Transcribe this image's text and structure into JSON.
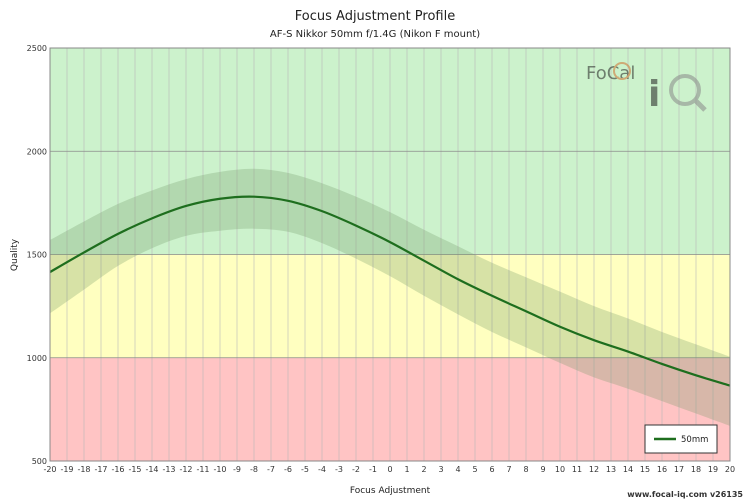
{
  "chart_data": {
    "type": "line",
    "title": "Focus Adjustment Profile",
    "subtitle": "AF-S Nikkor 50mm f/1.4G (Nikon F mount)",
    "xlabel": "Focus Adjustment",
    "ylabel": "Quality",
    "xlim": [
      -20,
      20
    ],
    "ylim": [
      500,
      2500
    ],
    "x_ticks": [
      -20,
      -19,
      -18,
      -17,
      -16,
      -15,
      -14,
      -13,
      -12,
      -11,
      -10,
      -9,
      -8,
      -7,
      -6,
      -5,
      -4,
      -3,
      -2,
      -1,
      0,
      1,
      2,
      3,
      4,
      5,
      6,
      7,
      8,
      9,
      10,
      11,
      12,
      13,
      14,
      15,
      16,
      17,
      18,
      19,
      20
    ],
    "y_ticks": [
      500,
      1000,
      1500,
      2000,
      2500
    ],
    "grid": true,
    "bands": [
      {
        "from": 1500,
        "to": 2500,
        "color": "#ccf2cc"
      },
      {
        "from": 1000,
        "to": 1500,
        "color": "#ffffc0"
      },
      {
        "from": 500,
        "to": 1000,
        "color": "#ffc4c4"
      }
    ],
    "legend_position": "bottom-right",
    "series": [
      {
        "name": "50mm",
        "color": "#1e6e1e",
        "x": [
          -20,
          -18,
          -16,
          -14,
          -12,
          -10,
          -8,
          -6,
          -4,
          -2,
          0,
          2,
          4,
          6,
          8,
          10,
          12,
          14,
          16,
          18,
          20
        ],
        "values": [
          1415,
          1510,
          1600,
          1675,
          1735,
          1770,
          1780,
          1760,
          1710,
          1640,
          1560,
          1470,
          1380,
          1300,
          1225,
          1150,
          1085,
          1030,
          970,
          915,
          865
        ],
        "band_upper": [
          1570,
          1660,
          1745,
          1810,
          1865,
          1900,
          1915,
          1895,
          1845,
          1780,
          1705,
          1620,
          1540,
          1460,
          1390,
          1320,
          1250,
          1190,
          1125,
          1065,
          1005
        ],
        "band_lower": [
          1215,
          1330,
          1445,
          1530,
          1590,
          1615,
          1625,
          1610,
          1555,
          1480,
          1395,
          1300,
          1210,
          1125,
          1050,
          975,
          905,
          850,
          790,
          730,
          670
        ]
      }
    ]
  },
  "footer_text": "www.focal-iq.com  v26135",
  "watermark_text": "FoCal iQ"
}
